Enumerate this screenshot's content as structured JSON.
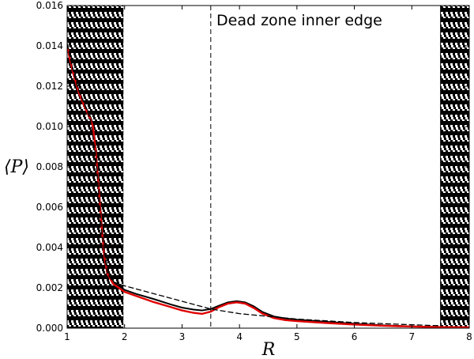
{
  "chart_data": {
    "type": "line",
    "xlabel": "R",
    "ylabel": "⟨P⟩",
    "xlim": [
      1,
      8
    ],
    "ylim": [
      0,
      0.016
    ],
    "x_ticks": [
      "1",
      "2",
      "3",
      "4",
      "5",
      "6",
      "7",
      "8"
    ],
    "y_ticks": [
      "0.000",
      "0.002",
      "0.004",
      "0.006",
      "0.008",
      "0.010",
      "0.012",
      "0.014",
      "0.016"
    ],
    "grid": false,
    "shaded_regions": [
      {
        "x": [
          1.0,
          1.98
        ],
        "style": "hatched-black"
      },
      {
        "x": [
          7.5,
          8.0
        ],
        "style": "hatched-black"
      }
    ],
    "vline": {
      "x": 3.5,
      "style": "dashed",
      "label": "Dead zone inner edge"
    },
    "series": [
      {
        "color": "#000000",
        "style": "solid",
        "x": [
          1.0,
          1.05,
          1.1,
          1.2,
          1.3,
          1.4,
          1.45,
          1.5,
          1.55,
          1.6,
          1.65,
          1.7,
          1.8,
          1.9,
          2.0,
          2.2,
          2.5,
          2.8,
          3.0,
          3.2,
          3.35,
          3.5,
          3.65,
          3.8,
          3.95,
          4.1,
          4.25,
          4.4,
          4.6,
          4.8,
          5.0,
          5.5,
          6.0,
          6.5,
          7.0,
          7.5,
          8.0
        ],
        "y": [
          0.0141,
          0.0134,
          0.0128,
          0.0118,
          0.0111,
          0.0105,
          0.0101,
          0.0089,
          0.0071,
          0.0052,
          0.0037,
          0.0029,
          0.0023,
          0.0021,
          0.0019,
          0.0017,
          0.00145,
          0.00118,
          0.00102,
          0.00092,
          0.00088,
          0.00095,
          0.00112,
          0.00128,
          0.00134,
          0.00128,
          0.00108,
          0.0008,
          0.00058,
          0.00048,
          0.00042,
          0.00032,
          0.00022,
          0.00014,
          9e-05,
          6e-05,
          5e-05
        ]
      },
      {
        "color": "#e00000",
        "style": "solid",
        "x": [
          1.0,
          1.05,
          1.1,
          1.2,
          1.3,
          1.4,
          1.45,
          1.5,
          1.55,
          1.6,
          1.65,
          1.7,
          1.8,
          1.9,
          2.0,
          2.2,
          2.5,
          2.8,
          3.0,
          3.2,
          3.35,
          3.5,
          3.65,
          3.8,
          3.95,
          4.1,
          4.25,
          4.4,
          4.6,
          4.8,
          5.0,
          5.5,
          6.0,
          6.5,
          7.0,
          7.5,
          8.0
        ],
        "y": [
          0.014,
          0.0133,
          0.0127,
          0.0117,
          0.011,
          0.0104,
          0.01,
          0.0087,
          0.0069,
          0.005,
          0.0035,
          0.0027,
          0.0022,
          0.002,
          0.0018,
          0.0016,
          0.0013,
          0.00105,
          0.00088,
          0.00076,
          0.00071,
          0.00082,
          0.00105,
          0.00122,
          0.00128,
          0.00122,
          0.001,
          0.00072,
          0.0005,
          0.0004,
          0.00035,
          0.00026,
          0.00018,
          0.00012,
          8e-05,
          5e-05,
          4e-05
        ]
      },
      {
        "color": "#000000",
        "style": "dashed",
        "x": [
          1.0,
          1.1,
          1.2,
          1.3,
          1.4,
          1.5,
          1.6,
          1.7,
          1.8,
          1.9,
          2.0,
          3.5,
          4.0,
          5.0,
          6.0,
          7.0,
          7.5
        ],
        "y": [
          0.0141,
          0.0128,
          0.0118,
          0.0111,
          0.0104,
          0.0085,
          0.0048,
          0.0027,
          0.0023,
          0.0022,
          0.0021,
          0.00095,
          0.00072,
          0.00045,
          0.00028,
          0.00017,
          0.00012
        ]
      }
    ]
  }
}
